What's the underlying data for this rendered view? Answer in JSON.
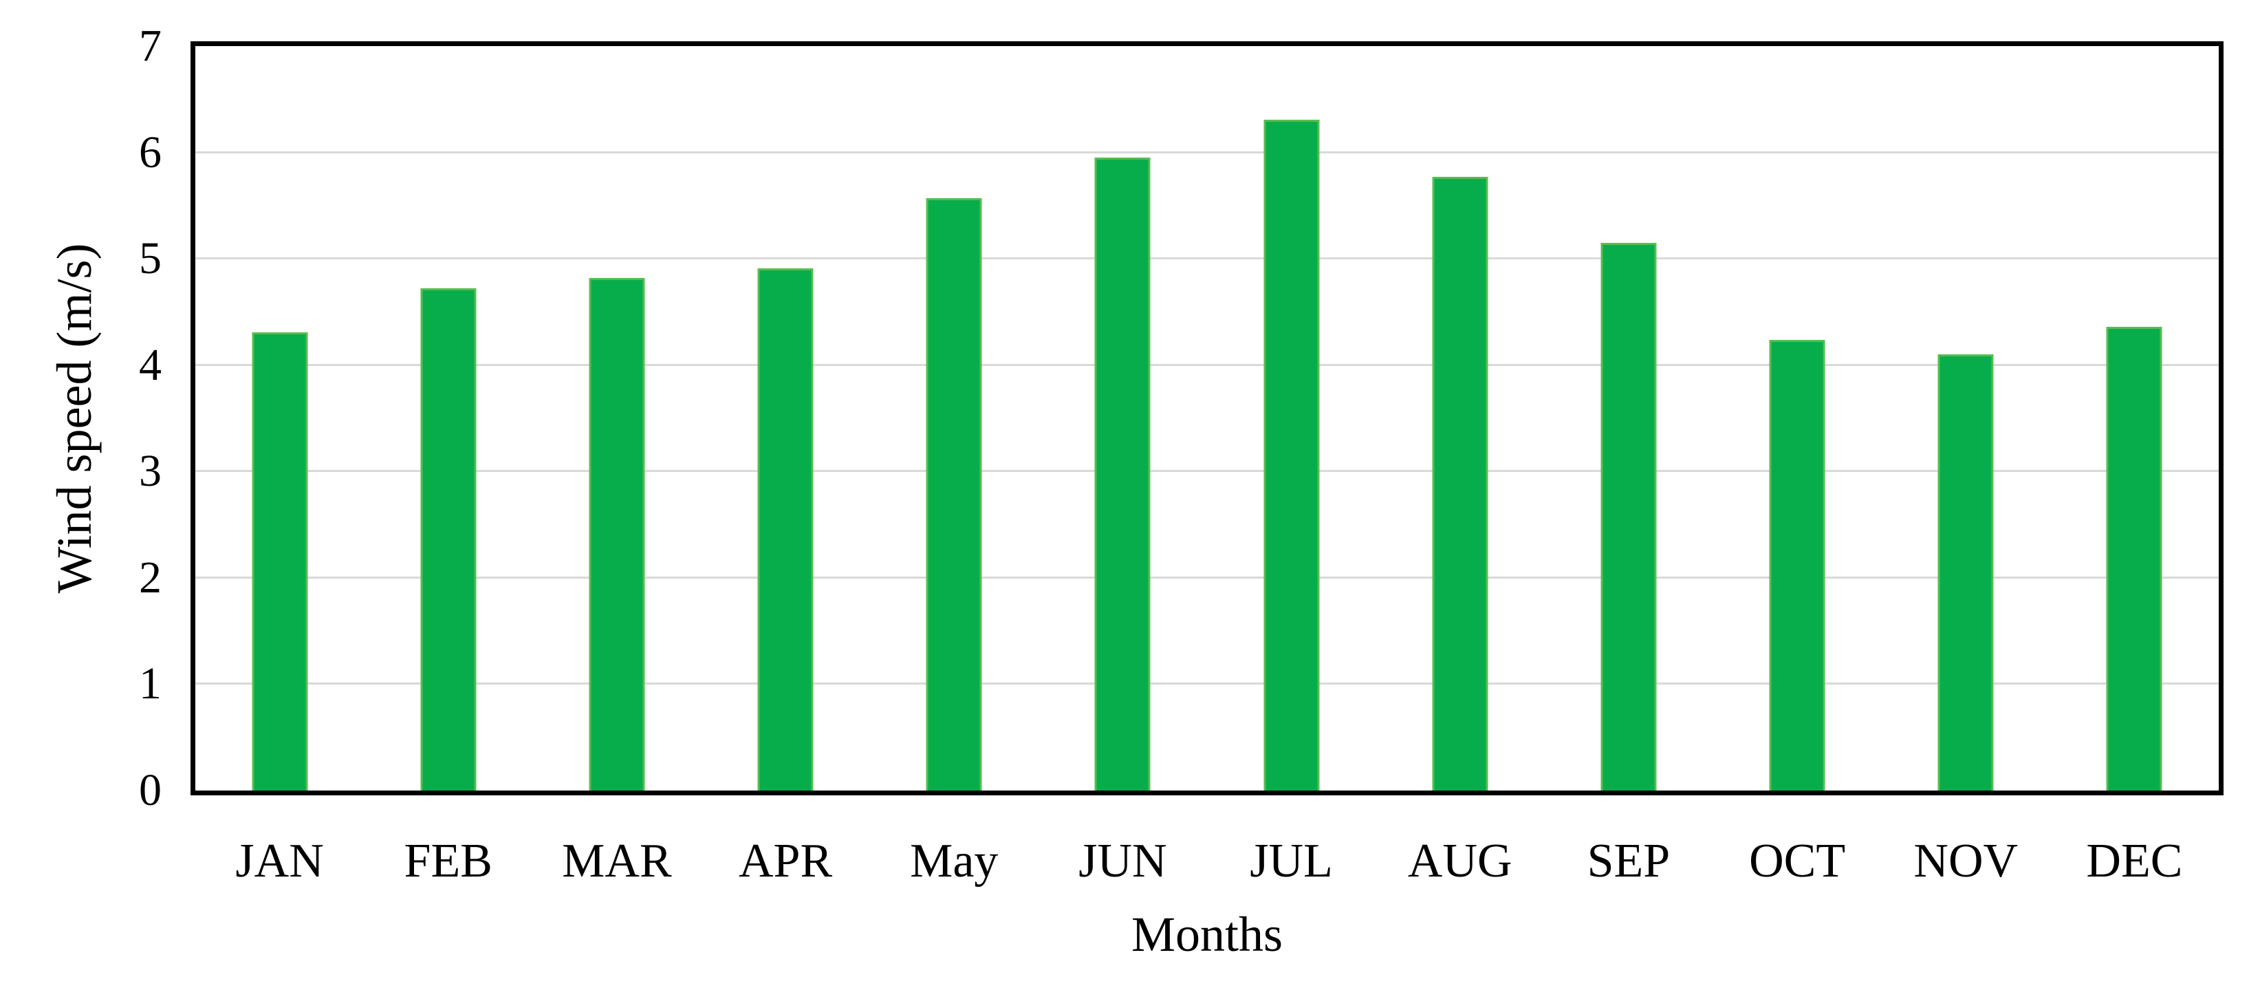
{
  "figure": {
    "background": "#ffffff",
    "frame_color": "#000000",
    "grid_color": "#d9d9d9",
    "bar_fill": "#08ad4b",
    "bar_border": "#57bd52"
  },
  "chart_data": {
    "type": "bar",
    "title": "",
    "xlabel": "Months",
    "ylabel": "Wind speed (m/s)",
    "categories": [
      "JAN",
      "FEB",
      "MAR",
      "APR",
      "May",
      "JUN",
      "JUL",
      "AUG",
      "SEP",
      "OCT",
      "NOV",
      "DEC"
    ],
    "values": [
      4.31,
      4.72,
      4.82,
      4.91,
      5.57,
      5.95,
      6.31,
      5.77,
      5.15,
      4.24,
      4.1,
      4.36
    ],
    "ylim": [
      0,
      7
    ],
    "yticks": [
      0,
      1,
      2,
      3,
      4,
      5,
      6,
      7
    ],
    "gridline_values": [
      1,
      2,
      3,
      4,
      5,
      6
    ],
    "grid": true,
    "legend": "none"
  }
}
